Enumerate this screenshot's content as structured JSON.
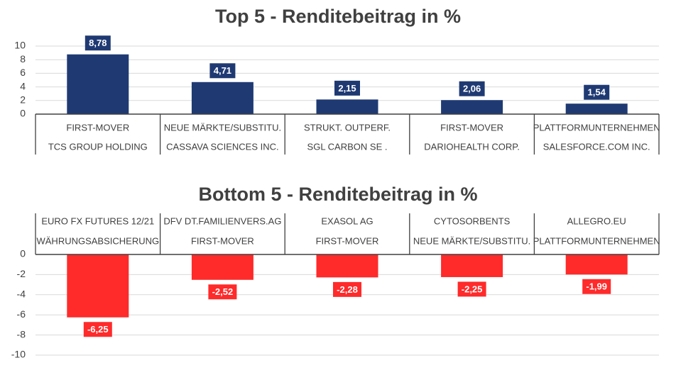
{
  "chart_data": [
    {
      "type": "bar",
      "title": "Top 5 - Renditebeitrag in %",
      "xlabel": "",
      "ylabel": "",
      "ylim": [
        0,
        10
      ],
      "yticks": [
        "0",
        "2",
        "4",
        "6",
        "8",
        "10"
      ],
      "grid": true,
      "color": "#1F3A73",
      "categories": [
        {
          "group": "FIRST-MOVER",
          "name": "TCS GROUP HOLDING"
        },
        {
          "group": "NEUE MÄRKTE/SUBSTITU.",
          "name": "CASSAVA SCIENCES INC."
        },
        {
          "group": "STRUKT. OUTPERF.",
          "name": "SGL CARBON SE ."
        },
        {
          "group": "FIRST-MOVER",
          "name": "DARIOHEALTH CORP."
        },
        {
          "group": "PLATTFORMUNTERNEHMEN",
          "name": "SALESFORCE.COM INC."
        }
      ],
      "values": [
        8.78,
        4.71,
        2.15,
        2.06,
        1.54
      ],
      "value_labels": [
        "8,78",
        "4,71",
        "2,15",
        "2,06",
        "1,54"
      ]
    },
    {
      "type": "bar",
      "title": "Bottom 5 - Renditebeitrag in %",
      "xlabel": "",
      "ylabel": "",
      "ylim": [
        -10,
        0
      ],
      "yticks": [
        "0",
        "-2",
        "-4",
        "-6",
        "-8",
        "-10"
      ],
      "grid": true,
      "color": "#FF2A2A",
      "categories": [
        {
          "name": "EURO FX FUTURES 12/21",
          "group": "WÄHRUNGSABSICHERUNG"
        },
        {
          "name": "DFV DT.FAMILIENVERS.AG",
          "group": "FIRST-MOVER"
        },
        {
          "name": "EXASOL AG",
          "group": "FIRST-MOVER"
        },
        {
          "name": "CYTOSORBENTS",
          "group": "NEUE MÄRKTE/SUBSTITU."
        },
        {
          "name": "ALLEGRO.EU",
          "group": "PLATTFORMUNTERNEHMEN"
        }
      ],
      "values": [
        -6.25,
        -2.52,
        -2.28,
        -2.25,
        -1.99
      ],
      "value_labels": [
        "-6,25",
        "-2,52",
        "-2,28",
        "-2,25",
        "-1,99"
      ]
    }
  ]
}
